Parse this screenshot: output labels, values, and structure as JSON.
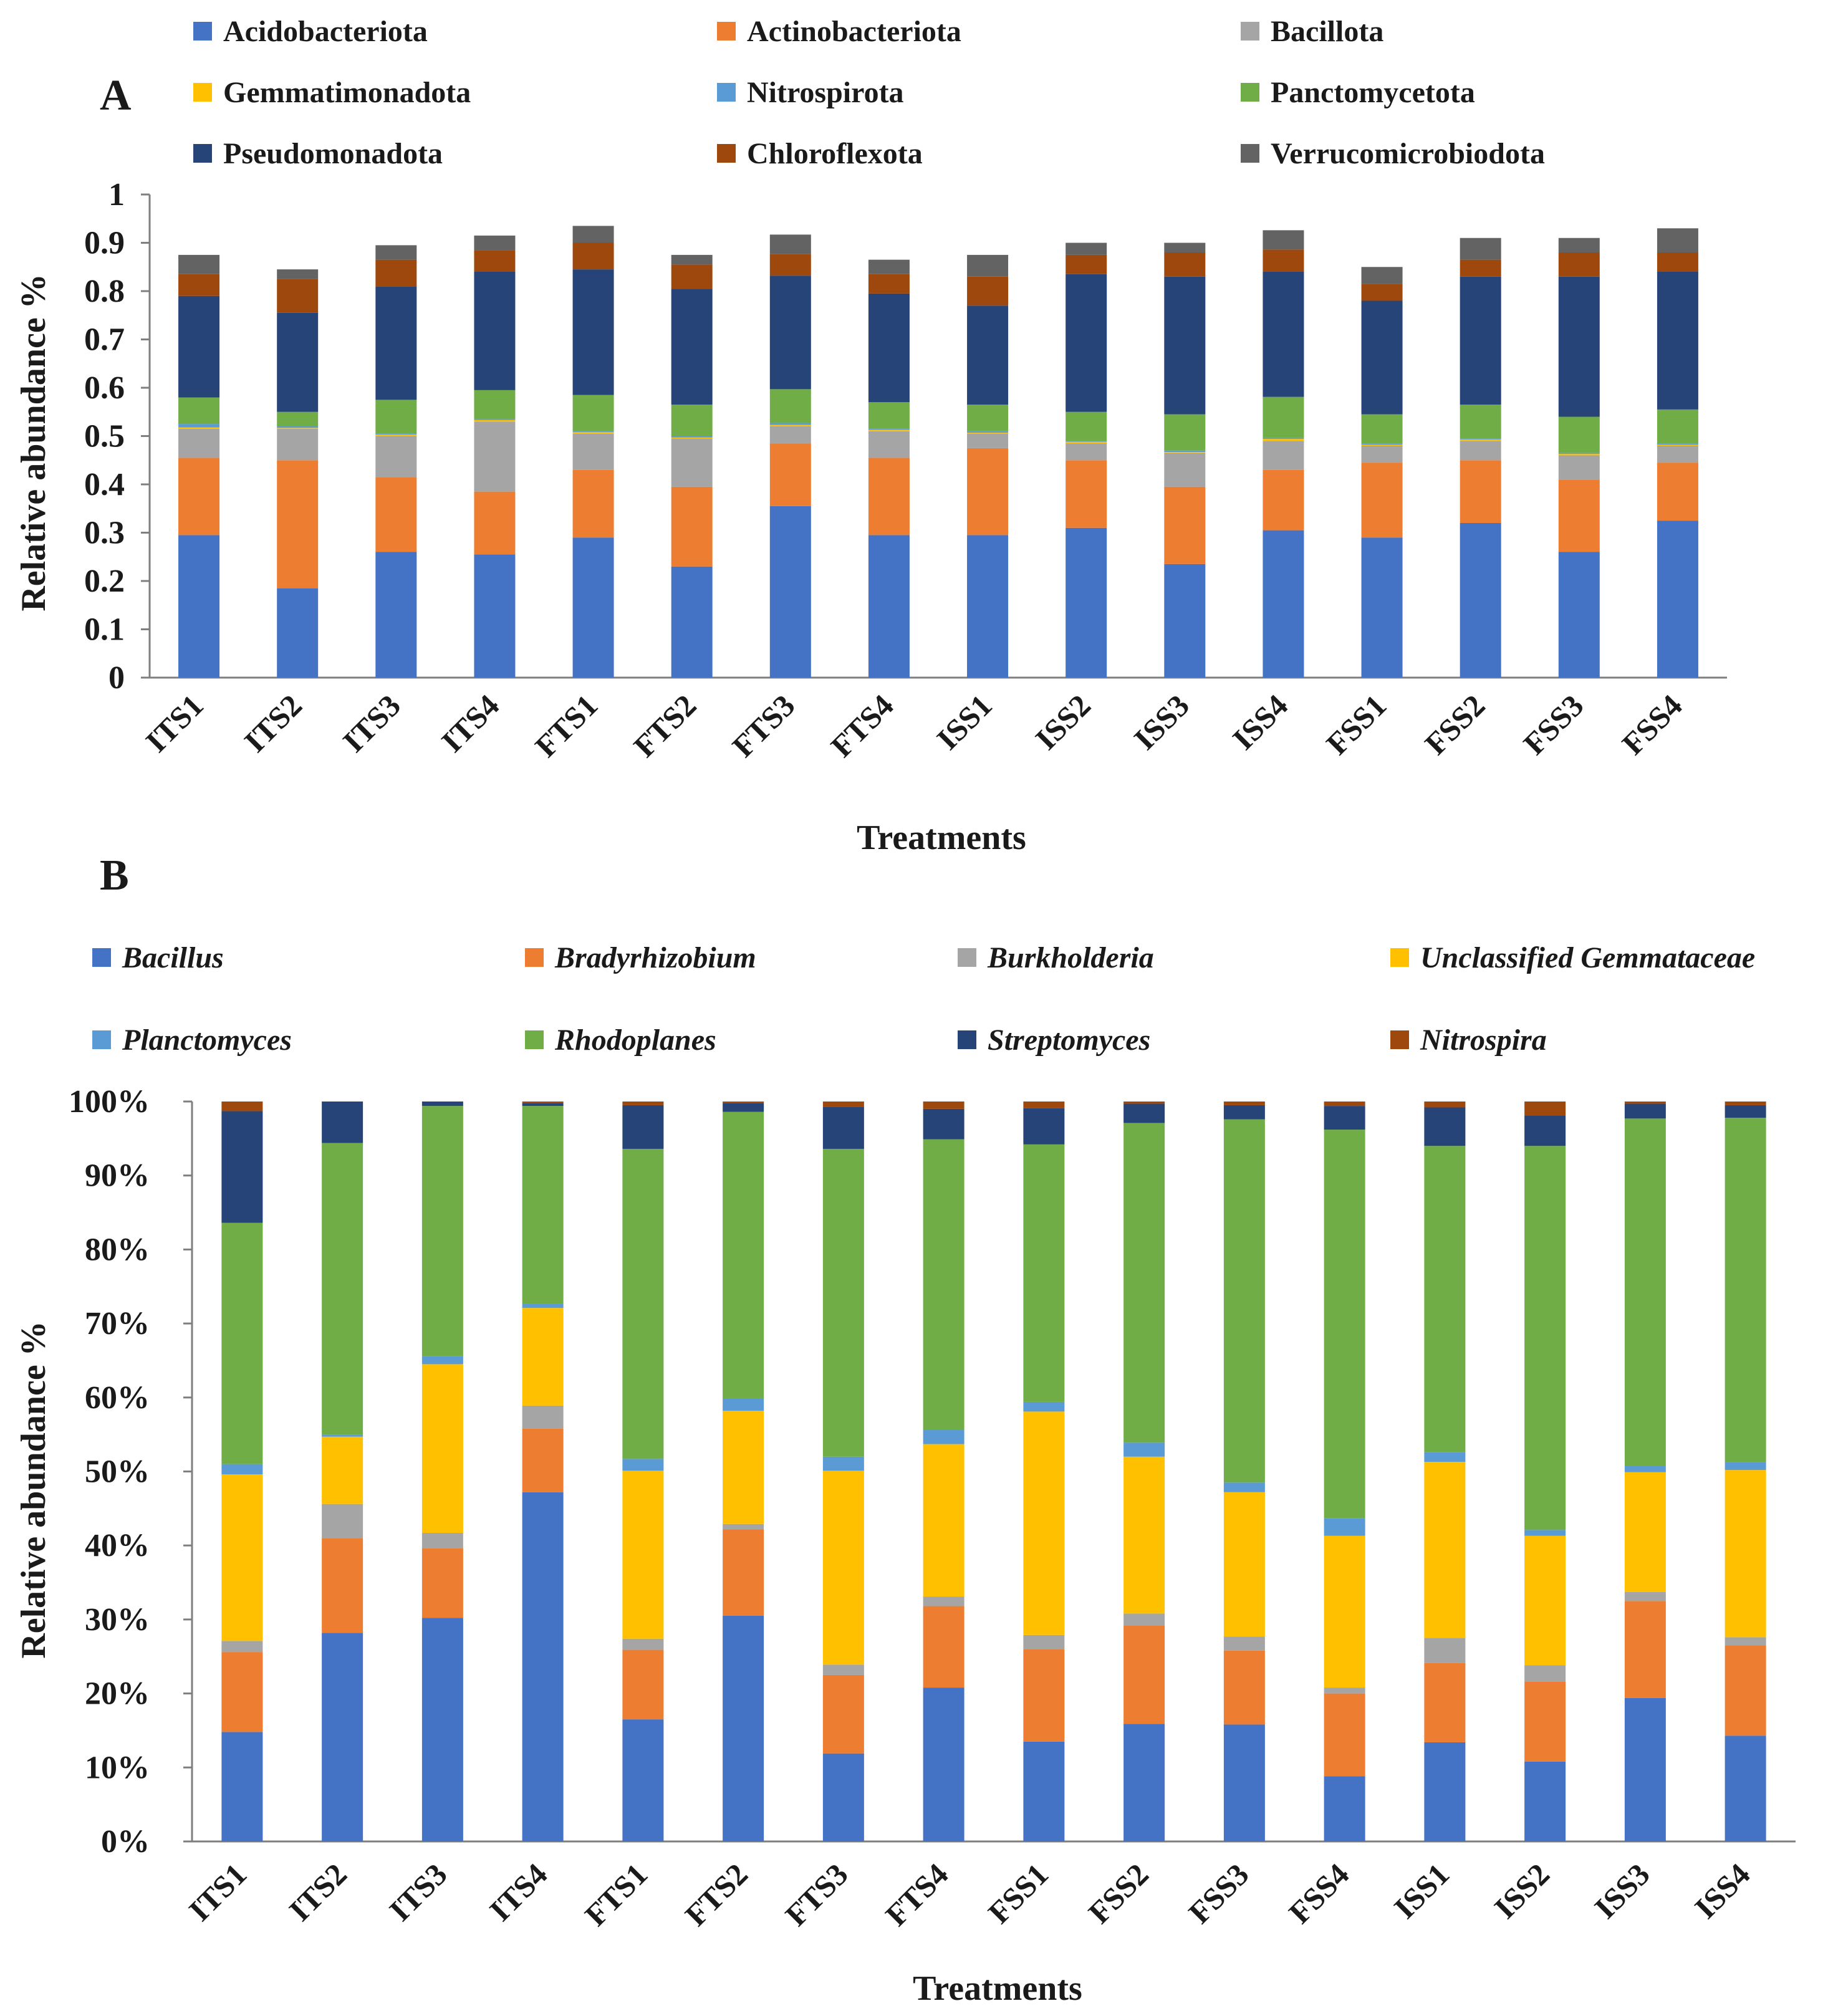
{
  "panel_labels": {
    "a": "A",
    "b": "B"
  },
  "chart_data": [
    {
      "id": "A",
      "type": "bar",
      "stacked": true,
      "title": "",
      "xlabel": "Treatments",
      "ylabel": "Relative abundance %",
      "ylim": [
        0,
        1
      ],
      "yticks": [
        "0",
        "0.1",
        "0.2",
        "0.3",
        "0.4",
        "0.5",
        "0.6",
        "0.7",
        "0.8",
        "0.9",
        "1"
      ],
      "categories": [
        "ITS1",
        "ITS2",
        "ITS3",
        "ITS4",
        "FTS1",
        "FTS2",
        "FTS3",
        "FTS4",
        "ISS1",
        "ISS2",
        "ISS3",
        "ISS4",
        "FSS1",
        "FSS2",
        "FSS3",
        "FSS4"
      ],
      "legend_position": "top",
      "series": [
        {
          "name": "Acidobacteriota",
          "color": "#4472C4",
          "values": [
            0.295,
            0.185,
            0.26,
            0.255,
            0.29,
            0.23,
            0.355,
            0.295,
            0.295,
            0.31,
            0.235,
            0.305,
            0.29,
            0.32,
            0.26,
            0.325
          ]
        },
        {
          "name": "Actinobacteriota",
          "color": "#ED7D31",
          "values": [
            0.16,
            0.265,
            0.155,
            0.13,
            0.14,
            0.165,
            0.13,
            0.16,
            0.18,
            0.14,
            0.16,
            0.125,
            0.155,
            0.13,
            0.15,
            0.12
          ]
        },
        {
          "name": "Bacillota",
          "color": "#A5A5A5",
          "values": [
            0.06,
            0.065,
            0.085,
            0.145,
            0.075,
            0.1,
            0.035,
            0.055,
            0.03,
            0.035,
            0.07,
            0.06,
            0.035,
            0.04,
            0.05,
            0.035
          ]
        },
        {
          "name": "Gemmatimonadota",
          "color": "#FFC000",
          "values": [
            0.003,
            0.002,
            0.003,
            0.003,
            0.003,
            0.002,
            0.003,
            0.003,
            0.002,
            0.003,
            0.002,
            0.004,
            0.002,
            0.003,
            0.003,
            0.002
          ]
        },
        {
          "name": "Nitrospirota",
          "color": "#5B9BD5",
          "values": [
            0.007,
            0.003,
            0.002,
            0.002,
            0.002,
            0.003,
            0.004,
            0.002,
            0.003,
            0.002,
            0.003,
            0.002,
            0.003,
            0.002,
            0.002,
            0.003
          ]
        },
        {
          "name": "Panctomycetota",
          "color": "#70AD47",
          "values": [
            0.055,
            0.03,
            0.07,
            0.06,
            0.075,
            0.065,
            0.07,
            0.055,
            0.055,
            0.06,
            0.075,
            0.085,
            0.06,
            0.07,
            0.075,
            0.07
          ]
        },
        {
          "name": "Pseudomonadota",
          "color": "#264478",
          "values": [
            0.21,
            0.205,
            0.235,
            0.245,
            0.26,
            0.24,
            0.235,
            0.225,
            0.205,
            0.285,
            0.285,
            0.26,
            0.235,
            0.265,
            0.29,
            0.285
          ]
        },
        {
          "name": "Chloroflexota",
          "color": "#9E480E",
          "values": [
            0.045,
            0.07,
            0.055,
            0.045,
            0.055,
            0.05,
            0.045,
            0.04,
            0.06,
            0.04,
            0.05,
            0.045,
            0.035,
            0.035,
            0.05,
            0.04
          ]
        },
        {
          "name": "Verrucomicrobiodota",
          "color": "#636363",
          "values": [
            0.04,
            0.02,
            0.03,
            0.03,
            0.035,
            0.02,
            0.04,
            0.03,
            0.045,
            0.025,
            0.02,
            0.04,
            0.035,
            0.045,
            0.03,
            0.05
          ]
        }
      ]
    },
    {
      "id": "B",
      "type": "bar",
      "stacked": true,
      "percent": true,
      "title": "",
      "xlabel": "Treatments",
      "ylabel": "Relative abundance %",
      "ylim": [
        0,
        100
      ],
      "yticks": [
        "0%",
        "10%",
        "20%",
        "30%",
        "40%",
        "50%",
        "60%",
        "70%",
        "80%",
        "90%",
        "100%"
      ],
      "categories": [
        "ITS1",
        "ITS2",
        "ITS3",
        "ITS4",
        "FTS1",
        "FTS2",
        "FTS3",
        "FTS4",
        "FSS1",
        "FSS2",
        "FSS3",
        "FSS4",
        "ISS1",
        "ISS2",
        "ISS3",
        "ISS4"
      ],
      "legend_position": "top",
      "series": [
        {
          "name": "Bacillus",
          "color": "#4472C4",
          "values": [
            14.8,
            28.2,
            30.2,
            47.2,
            16.5,
            30.5,
            11.9,
            20.8,
            13.5,
            15.9,
            15.8,
            8.8,
            13.4,
            10.8,
            19.4,
            14.3
          ]
        },
        {
          "name": "Bradyrhizobium",
          "color": "#ED7D31",
          "values": [
            10.8,
            12.8,
            9.4,
            8.6,
            9.4,
            11.7,
            10.6,
            11.0,
            12.5,
            13.3,
            10.0,
            11.2,
            10.7,
            10.8,
            13.1,
            12.2
          ]
        },
        {
          "name": "Burkholderia",
          "color": "#A5A5A5",
          "values": [
            1.5,
            4.6,
            2.1,
            3.1,
            1.5,
            0.7,
            1.4,
            1.3,
            1.9,
            1.6,
            1.9,
            0.8,
            3.4,
            2.2,
            1.2,
            1.1
          ]
        },
        {
          "name": "Unclassified Gemmataceae",
          "color": "#FFC000",
          "values": [
            22.5,
            9.1,
            22.8,
            13.2,
            22.7,
            15.3,
            26.2,
            20.6,
            30.2,
            21.2,
            19.5,
            20.5,
            23.8,
            17.5,
            16.2,
            22.6
          ]
        },
        {
          "name": "Planctomyces",
          "color": "#5B9BD5",
          "values": [
            1.4,
            0.3,
            1.1,
            0.6,
            1.6,
            1.7,
            1.9,
            1.9,
            1.3,
            1.9,
            1.3,
            2.4,
            1.3,
            0.8,
            0.9,
            1.1
          ]
        },
        {
          "name": "Rhodoplanes",
          "color": "#70AD47",
          "values": [
            32.6,
            39.4,
            33.8,
            26.7,
            41.9,
            38.7,
            41.6,
            39.3,
            34.8,
            43.2,
            49.1,
            52.5,
            41.4,
            51.9,
            46.9,
            46.5
          ]
        },
        {
          "name": "Streptomyces",
          "color": "#264478",
          "values": [
            15.1,
            5.6,
            0.6,
            0.4,
            5.9,
            1.2,
            5.7,
            4.1,
            4.9,
            2.6,
            1.9,
            3.2,
            5.2,
            4.1,
            2.0,
            1.7
          ]
        },
        {
          "name": "Nitrospira",
          "color": "#9E480E",
          "values": [
            1.3,
            0.0,
            0.0,
            0.2,
            0.5,
            0.2,
            0.7,
            1.0,
            0.9,
            0.3,
            0.5,
            0.6,
            0.8,
            1.9,
            0.3,
            0.5
          ]
        }
      ]
    }
  ]
}
